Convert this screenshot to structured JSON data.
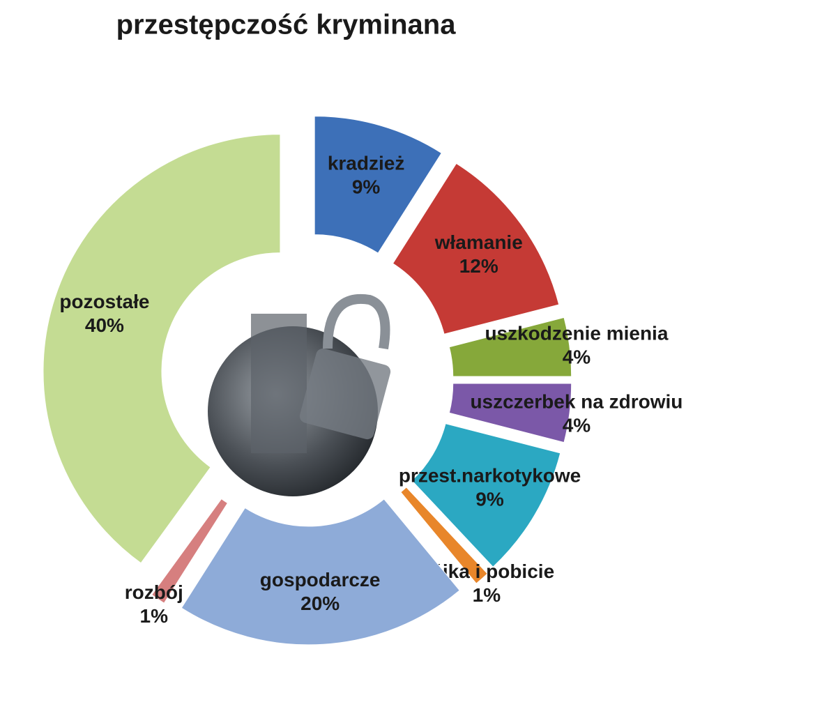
{
  "chart_data": {
    "type": "pie",
    "title": "przestępczość kryminana",
    "categories": [
      "kradzież",
      "włamanie",
      "uszkodzenie mienia",
      "uszczerbek na zdrowiu",
      "przest.narkotykowe",
      "bójka i pobicie",
      "gospodarcze",
      "rozbój",
      "pozostałe"
    ],
    "values": [
      9,
      12,
      4,
      4,
      9,
      1,
      20,
      1,
      40
    ],
    "value_labels": [
      "9%",
      "12%",
      "4%",
      "4%",
      "9%",
      "1%",
      "20%",
      "1%",
      "40%"
    ],
    "colors": [
      "#3d70b8",
      "#c53a35",
      "#86a83a",
      "#7b58a8",
      "#2ba8c2",
      "#e8862a",
      "#8eabd8",
      "#d67f7f",
      "#c4dc93"
    ]
  }
}
